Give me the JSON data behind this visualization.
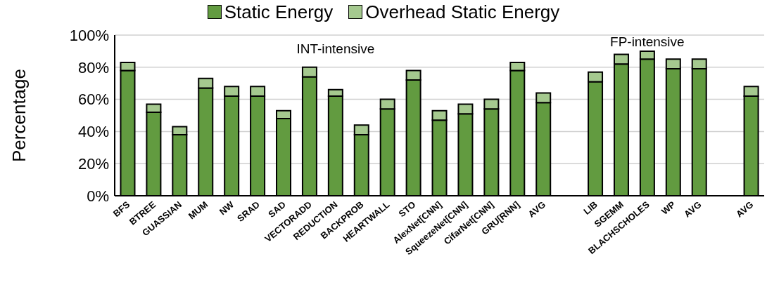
{
  "chart_data": {
    "type": "bar",
    "stacked": true,
    "ylabel": "Percentage",
    "categories": [
      "BFS",
      "BTREE",
      "GUASSIAN",
      "MUM",
      "NW",
      "SRAD",
      "SAD",
      "VECTORADD",
      "REDUCTION",
      "BACKPROB",
      "HEARTWALL",
      "STO",
      "AlexNet[CNN]",
      "SqueezeNet[CNN]",
      "CifarNet[CNN]",
      "GRU[RNN]",
      "AVG",
      null,
      "LIB",
      "SGEMM",
      "BLACHSCHOLES",
      "WP",
      "AVG",
      null,
      "AVG"
    ],
    "series": [
      {
        "name": "Static Energy",
        "color": "#629b40",
        "values": [
          78,
          52,
          38,
          67,
          62,
          62,
          48,
          74,
          62,
          38,
          54,
          72,
          47,
          51,
          54,
          78,
          58,
          null,
          71,
          82,
          85,
          79,
          79,
          null,
          62
        ]
      },
      {
        "name": "Overhead Static Energy",
        "color": "#a5c98f",
        "values": [
          5,
          5,
          5,
          6,
          6,
          6,
          5,
          6,
          4,
          6,
          6,
          6,
          6,
          6,
          6,
          5,
          6,
          null,
          6,
          6,
          5,
          6,
          6,
          null,
          6
        ]
      }
    ],
    "ylim": [
      0,
      100
    ],
    "yticks": [
      {
        "value": 0,
        "label": "0%"
      },
      {
        "value": 20,
        "label": "20%"
      },
      {
        "value": 40,
        "label": "40%"
      },
      {
        "value": 60,
        "label": "60%"
      },
      {
        "value": 80,
        "label": "80%"
      },
      {
        "value": 100,
        "label": "100%"
      }
    ],
    "grid": "y",
    "legend": "top",
    "annotations": [
      "INT-intensive",
      "FP-intensive"
    ]
  }
}
